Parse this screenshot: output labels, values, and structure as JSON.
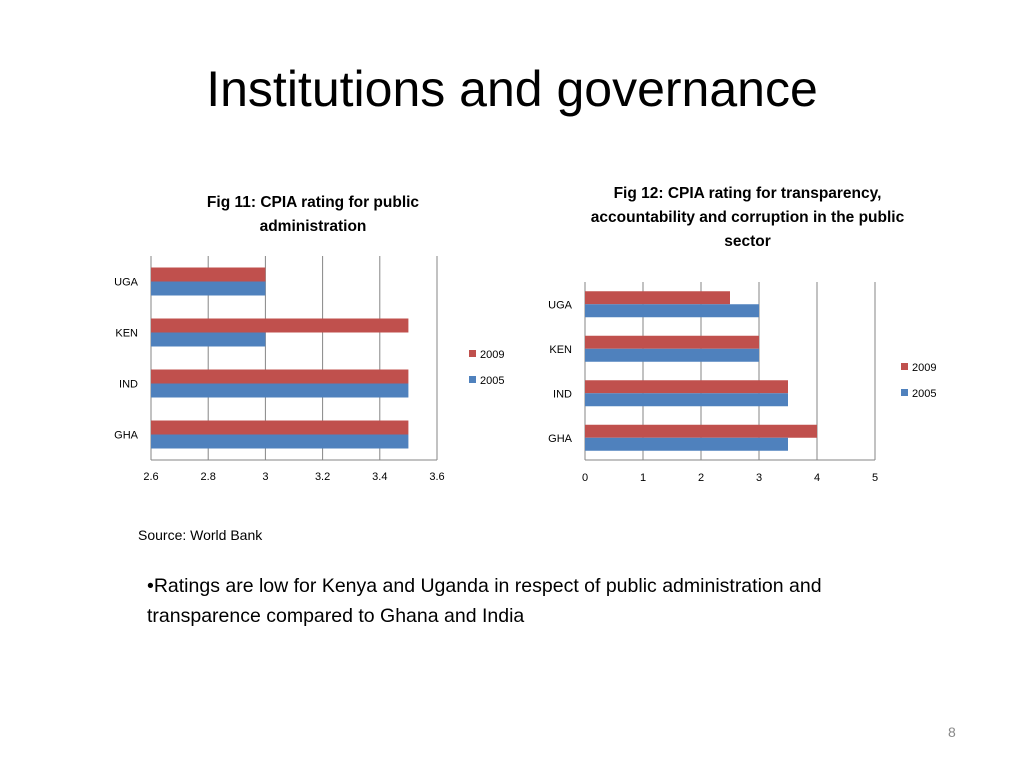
{
  "slide": {
    "title": "Institutions and governance",
    "source": "Source: World Bank",
    "bullet": "•Ratings are low for Kenya and Uganda in respect of public administration and transparence compared to Ghana and India",
    "page_number": "8"
  },
  "colors": {
    "2009": "#c0504d",
    "2005": "#4f81bd",
    "grid": "#868686"
  },
  "chart_data": [
    {
      "type": "bar",
      "orientation": "horizontal",
      "title": "Fig 11: CPIA rating for public administration",
      "categories": [
        "UGA",
        "KEN",
        "IND",
        "GHA"
      ],
      "series": [
        {
          "name": "2009",
          "values": [
            3.0,
            3.5,
            3.5,
            3.5
          ]
        },
        {
          "name": "2005",
          "values": [
            3.0,
            3.0,
            3.5,
            3.5
          ]
        }
      ],
      "xlim": [
        2.6,
        3.6
      ],
      "xticks": [
        "2.6",
        "2.8",
        "3",
        "3.2",
        "3.4",
        "3.6"
      ],
      "legend": "right",
      "grid": true
    },
    {
      "type": "bar",
      "orientation": "horizontal",
      "title": "Fig 12: CPIA rating for transparency, accountability and corruption in the public sector",
      "categories": [
        "UGA",
        "KEN",
        "IND",
        "GHA"
      ],
      "series": [
        {
          "name": "2009",
          "values": [
            2.5,
            3.0,
            3.5,
            4.0
          ]
        },
        {
          "name": "2005",
          "values": [
            3.0,
            3.0,
            3.5,
            3.5
          ]
        }
      ],
      "xlim": [
        0,
        5
      ],
      "xticks": [
        "0",
        "1",
        "2",
        "3",
        "4",
        "5"
      ],
      "legend": "right",
      "grid": true
    }
  ]
}
